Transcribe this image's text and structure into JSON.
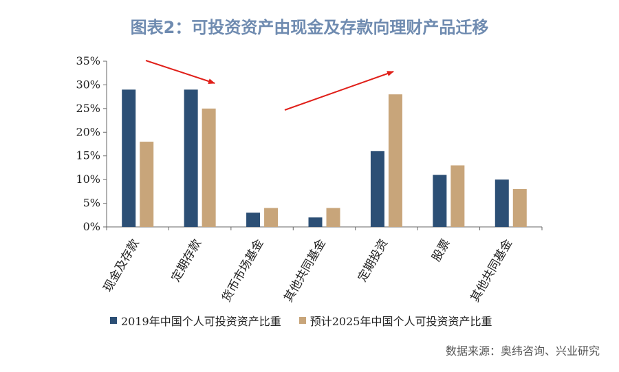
{
  "colors": {
    "series1": "#2c4f75",
    "series2": "#c8a57a",
    "arrow": "#e0201a",
    "axis": "#666666",
    "title": "#6f8bb0"
  },
  "chart_data": {
    "type": "bar",
    "title": "图表2：可投资资产由现金及存款向理财产品迁移",
    "categories": [
      "现金及存款",
      "定期存款",
      "货币市场基金",
      "其他共同基金",
      "定期投资",
      "股票",
      "其他共同基金"
    ],
    "series": [
      {
        "name": "2019年中国个人可投资资产比重",
        "values": [
          29,
          29,
          3,
          2,
          16,
          11,
          10
        ]
      },
      {
        "name": "预计2025年中国个人可投资资产比重",
        "values": [
          18,
          25,
          4,
          4,
          28,
          13,
          8
        ]
      }
    ],
    "y_ticks": [
      "0%",
      "5%",
      "10%",
      "15%",
      "20%",
      "25%",
      "30%",
      "35%"
    ],
    "ylim": [
      0,
      35
    ],
    "grid": false,
    "legend_position": "bottom",
    "source": "数据来源：奥纬咨询、兴业研究"
  }
}
